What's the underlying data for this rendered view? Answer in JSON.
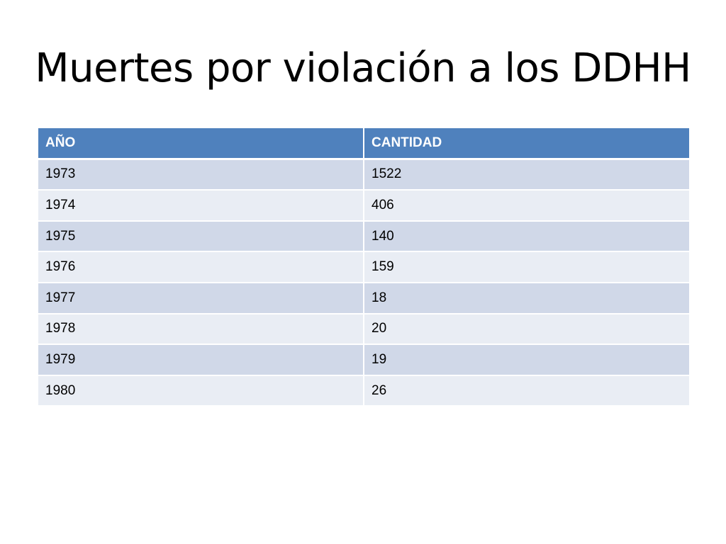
{
  "slide": {
    "title": "Muertes por violación a los DDHH"
  },
  "table": {
    "headers": [
      "AÑO",
      "CANTIDAD"
    ],
    "rows": [
      [
        "1973",
        "1522"
      ],
      [
        "1974",
        "406"
      ],
      [
        "1975",
        "140"
      ],
      [
        "1976",
        "159"
      ],
      [
        "1977",
        "18"
      ],
      [
        "1978",
        "20"
      ],
      [
        "1979",
        "19"
      ],
      [
        "1980",
        "26"
      ]
    ]
  },
  "colors": {
    "header_bg": "#4f81bd",
    "row_band_dark": "#d0d8e8",
    "row_band_light": "#e9edf4"
  }
}
